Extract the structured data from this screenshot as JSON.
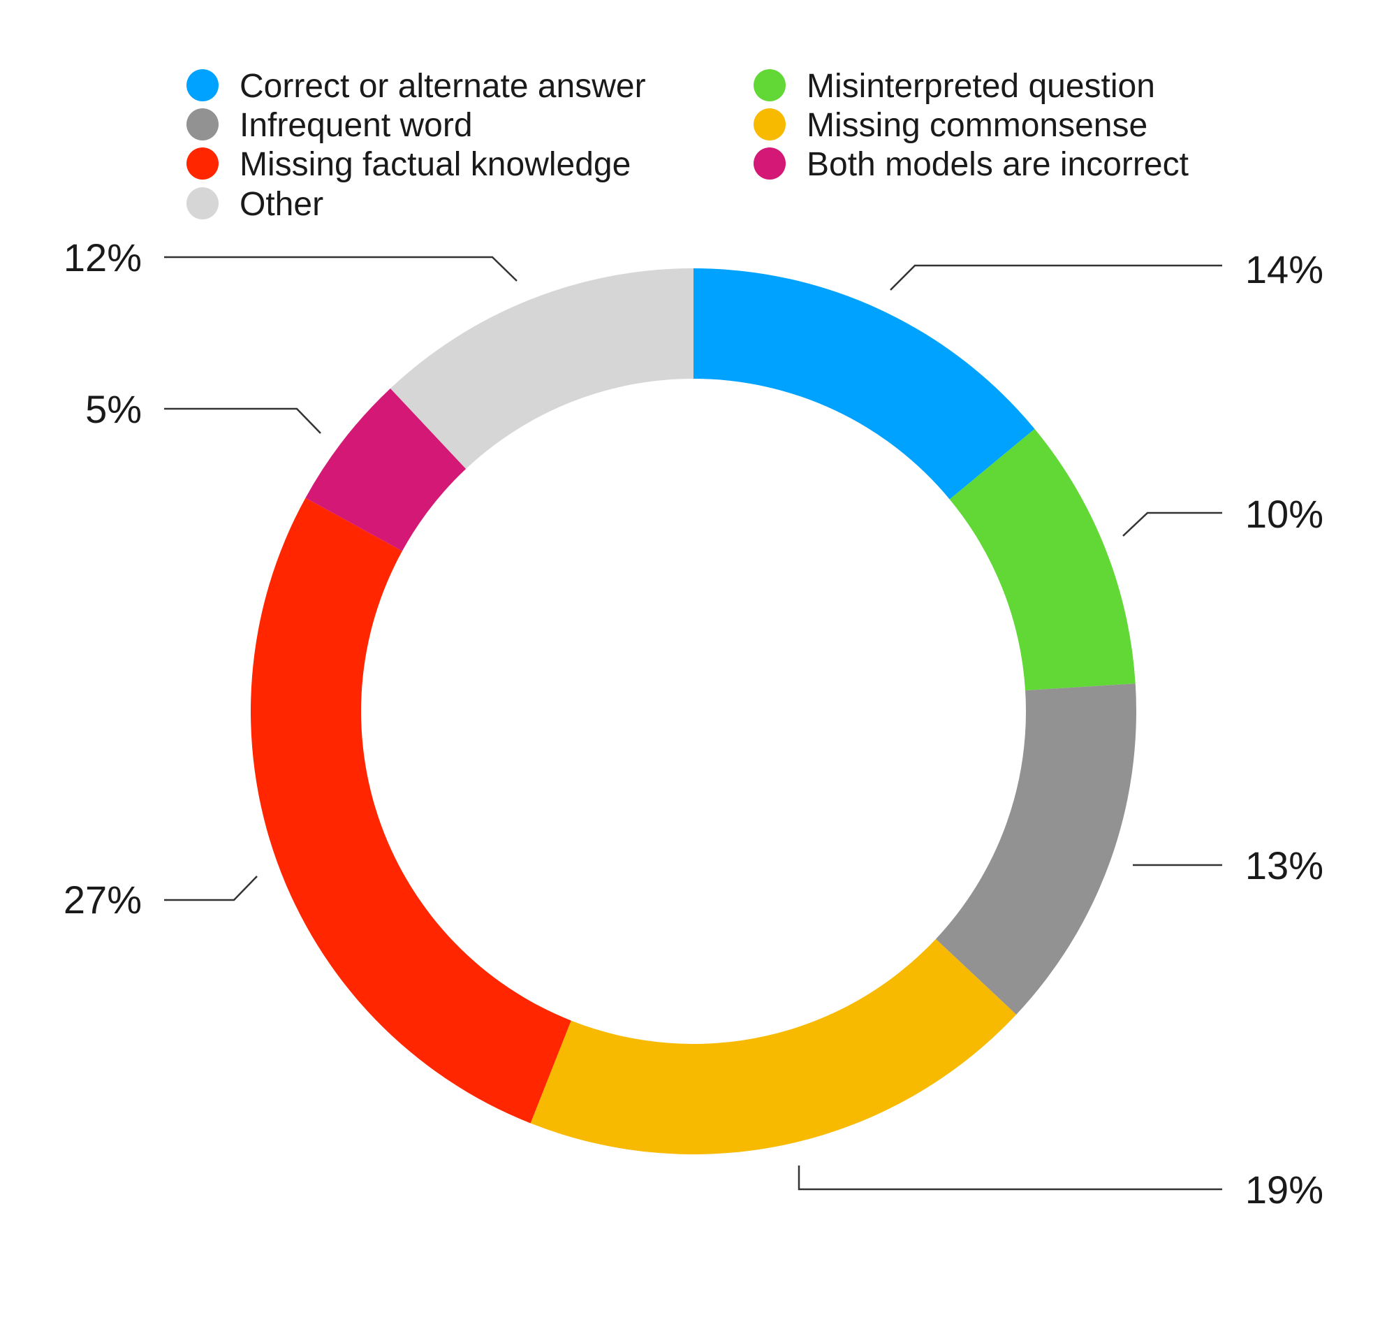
{
  "chart_data": {
    "type": "pie",
    "variant": "donut",
    "legend_position": "top",
    "slices": [
      {
        "label": "Correct or alternate answer",
        "value": 14,
        "value_label": "14%",
        "color": "#00A2FF"
      },
      {
        "label": "Misinterpreted question",
        "value": 10,
        "value_label": "10%",
        "color": "#61D836"
      },
      {
        "label": "Infrequent word",
        "value": 13,
        "value_label": "13%",
        "color": "#929292"
      },
      {
        "label": "Missing commonsense",
        "value": 19,
        "value_label": "19%",
        "color": "#F8BA00"
      },
      {
        "label": "Missing factual knowledge",
        "value": 27,
        "value_label": "27%",
        "color": "#FF2600"
      },
      {
        "label": "Both models are incorrect",
        "value": 5,
        "value_label": "5%",
        "color": "#D41876"
      },
      {
        "label": "Other",
        "value": 12,
        "value_label": "12%",
        "color": "#D6D6D6"
      }
    ],
    "legend_order": [
      "Correct or alternate answer",
      "Misinterpreted question",
      "Infrequent word",
      "Missing commonsense",
      "Missing factual knowledge",
      "Both models are incorrect",
      "Other"
    ]
  }
}
